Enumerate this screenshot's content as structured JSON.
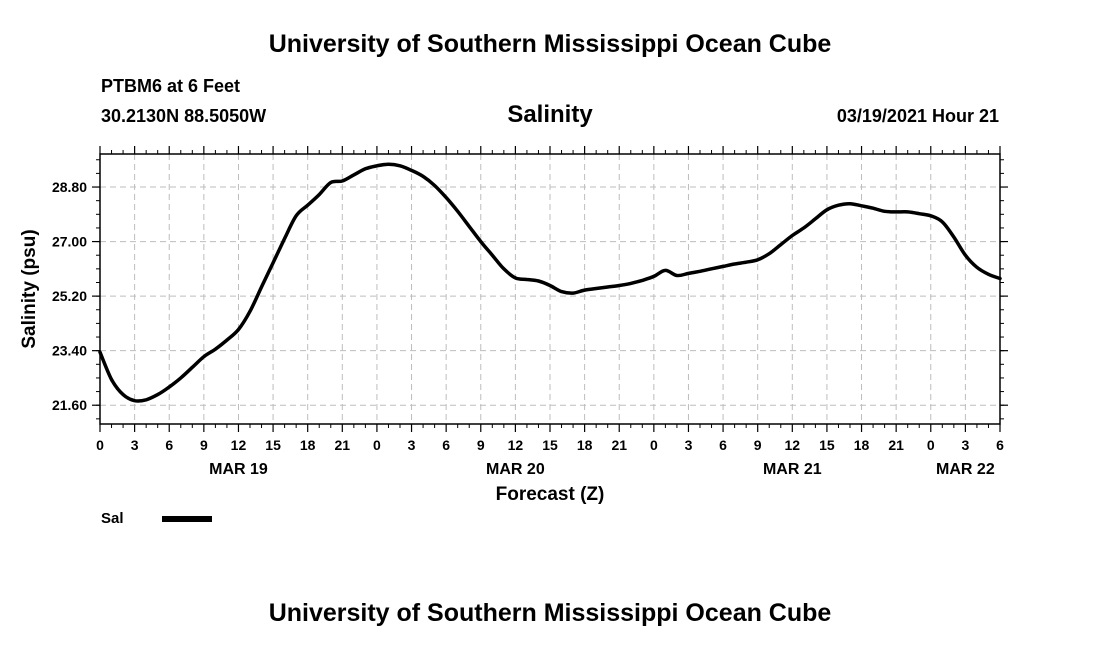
{
  "header": {
    "main_title": "University of Southern Mississippi Ocean Cube",
    "station": "PTBM6 at 6 Feet",
    "coords": "30.2130N 88.5050W",
    "chart_title": "Salinity",
    "datetime": "03/19/2021 Hour 21"
  },
  "footer": {
    "title": "University of Southern Mississippi Ocean Cube"
  },
  "legend": {
    "label": "Sal",
    "color": "#000000"
  },
  "chart_data": {
    "type": "line",
    "title": "Salinity",
    "xlabel": "Forecast (Z)",
    "ylabel": "Salinity (psu)",
    "x_unit": "hours from 00Z MAR 19",
    "xlim": [
      0,
      78
    ],
    "ylim": [
      20.98,
      29.89
    ],
    "y_ticks": [
      21.6,
      23.4,
      25.2,
      27.0,
      28.8
    ],
    "y_tick_labels": [
      "21.60",
      "23.40",
      "25.20",
      "27.00",
      "28.80"
    ],
    "x_ticks": [
      0,
      3,
      6,
      9,
      12,
      15,
      18,
      21,
      24,
      27,
      30,
      33,
      36,
      39,
      42,
      45,
      48,
      51,
      54,
      57,
      60,
      63,
      66,
      69,
      72,
      75,
      78
    ],
    "x_tick_labels": [
      "0",
      "3",
      "6",
      "9",
      "12",
      "15",
      "18",
      "21",
      "0",
      "3",
      "6",
      "9",
      "12",
      "15",
      "18",
      "21",
      "0",
      "3",
      "6",
      "9",
      "12",
      "15",
      "18",
      "21",
      "0",
      "3",
      "6"
    ],
    "date_labels": [
      {
        "x": 12,
        "label": "MAR 19"
      },
      {
        "x": 36,
        "label": "MAR 20"
      },
      {
        "x": 60,
        "label": "MAR 21"
      },
      {
        "x": 75,
        "label": "MAR 22"
      }
    ],
    "grid": true,
    "legend_position": "bottom-left",
    "series": [
      {
        "name": "Sal",
        "color": "#000000",
        "x": [
          0,
          1,
          2,
          3,
          4,
          5,
          6,
          7,
          8,
          9,
          10,
          11,
          12,
          13,
          14,
          15,
          16,
          17,
          18,
          19,
          20,
          21,
          22,
          23,
          24,
          25,
          26,
          27,
          28,
          29,
          30,
          31,
          32,
          33,
          34,
          35,
          36,
          37,
          38,
          39,
          40,
          41,
          42,
          43,
          44,
          45,
          46,
          47,
          48,
          49,
          50,
          51,
          52,
          53,
          54,
          55,
          56,
          57,
          58,
          59,
          60,
          61,
          62,
          63,
          64,
          65,
          66,
          67,
          68,
          69,
          70,
          71,
          72,
          73,
          74,
          75,
          76,
          77,
          78
        ],
        "y": [
          23.35,
          22.45,
          21.95,
          21.75,
          21.78,
          21.95,
          22.2,
          22.5,
          22.85,
          23.2,
          23.45,
          23.75,
          24.1,
          24.7,
          25.5,
          26.3,
          27.1,
          27.85,
          28.2,
          28.55,
          28.95,
          29.0,
          29.2,
          29.4,
          29.5,
          29.55,
          29.5,
          29.35,
          29.15,
          28.85,
          28.45,
          28.0,
          27.5,
          27.0,
          26.55,
          26.1,
          25.8,
          25.75,
          25.7,
          25.55,
          25.35,
          25.3,
          25.4,
          25.45,
          25.5,
          25.55,
          25.62,
          25.72,
          25.85,
          26.05,
          25.88,
          25.95,
          26.02,
          26.1,
          26.18,
          26.26,
          26.32,
          26.4,
          26.6,
          26.9,
          27.2,
          27.45,
          27.75,
          28.05,
          28.2,
          28.25,
          28.18,
          28.1,
          28.0,
          27.98,
          27.98,
          27.92,
          27.85,
          27.65,
          27.15,
          26.55,
          26.15,
          25.92,
          25.78
        ]
      }
    ]
  }
}
